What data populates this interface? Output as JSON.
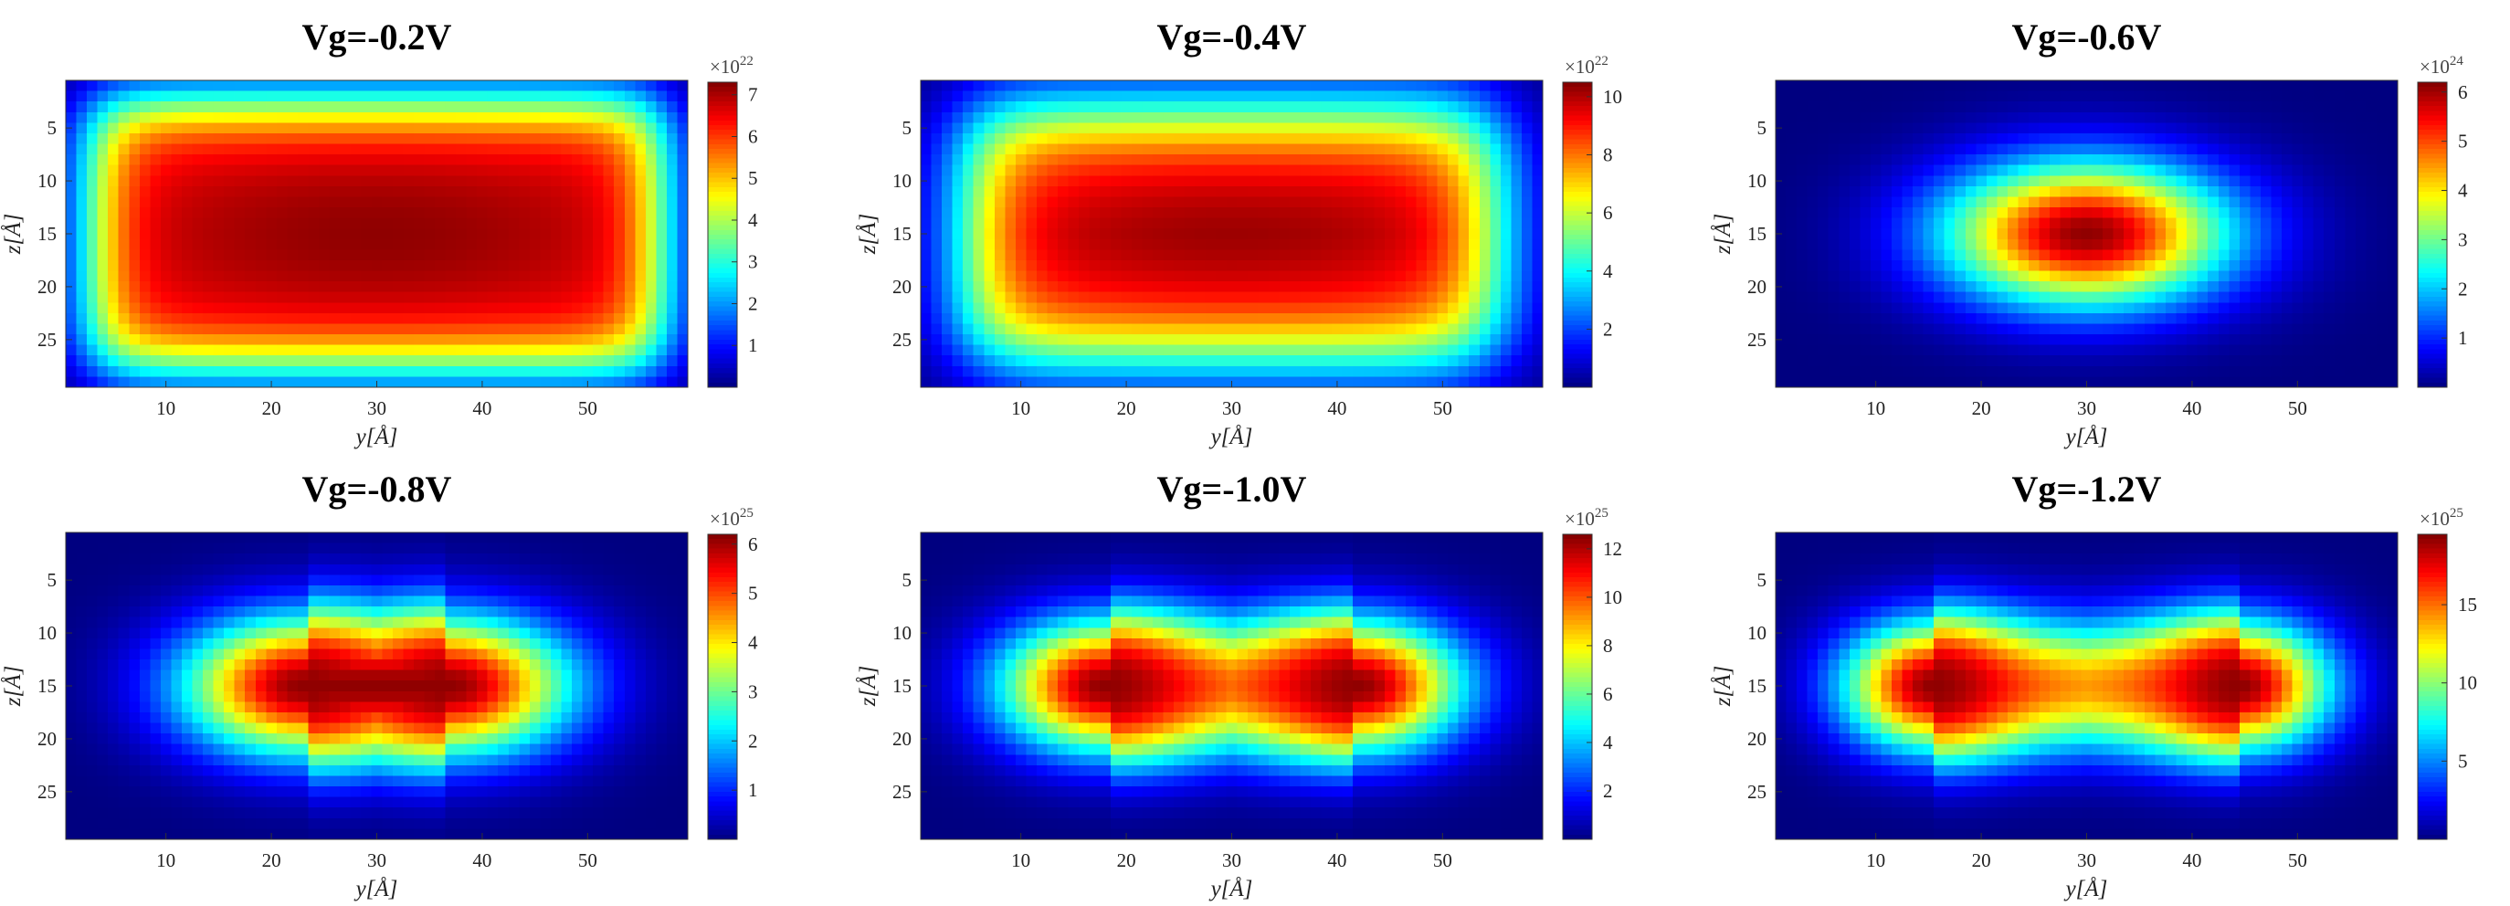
{
  "chart_data": [
    {
      "type": "heatmap",
      "title": "Vg=-0.2V",
      "xlabel": "y[Å]",
      "ylabel": "z[Å]",
      "xlim": [
        0.5,
        59.5
      ],
      "ylim": [
        0.5,
        29.5
      ],
      "y_reversed": true,
      "xticks": [
        10,
        20,
        30,
        40,
        50
      ],
      "yticks": [
        5,
        10,
        15,
        20,
        25
      ],
      "colorbar": {
        "colormap": "jet",
        "range": [
          0,
          7.3
        ],
        "ticks": [
          1,
          2,
          3,
          4,
          5,
          6,
          7
        ],
        "multiplier_base": "×10",
        "multiplier_exp": "22"
      },
      "distribution": {
        "shape": "flat-top slab",
        "peak_value": 7.2,
        "lobes": [
          [
            30,
            15
          ]
        ],
        "half_width_y": 27,
        "half_width_z": 12.5,
        "edge_softness": 3.5
      }
    },
    {
      "type": "heatmap",
      "title": "Vg=-0.4V",
      "xlabel": "y[Å]",
      "ylabel": "z[Å]",
      "xlim": [
        0.5,
        59.5
      ],
      "ylim": [
        0.5,
        29.5
      ],
      "y_reversed": true,
      "xticks": [
        10,
        20,
        30,
        40,
        50
      ],
      "yticks": [
        5,
        10,
        15,
        20,
        25
      ],
      "colorbar": {
        "colormap": "jet",
        "range": [
          0,
          10.5
        ],
        "ticks": [
          2,
          4,
          6,
          8,
          10
        ],
        "multiplier_base": "×10",
        "multiplier_exp": "22"
      },
      "distribution": {
        "shape": "flat-top slab",
        "peak_value": 10.3,
        "lobes": [
          [
            30,
            15
          ]
        ],
        "half_width_y": 25,
        "half_width_z": 11.5,
        "edge_softness": 4.5
      }
    },
    {
      "type": "heatmap",
      "title": "Vg=-0.6V",
      "xlabel": "y[Å]",
      "ylabel": "z[Å]",
      "xlim": [
        0.5,
        59.5
      ],
      "ylim": [
        0.5,
        29.5
      ],
      "y_reversed": true,
      "xticks": [
        10,
        20,
        30,
        40,
        50
      ],
      "yticks": [
        5,
        10,
        15,
        20,
        25
      ],
      "colorbar": {
        "colormap": "jet",
        "range": [
          0,
          6.2
        ],
        "ticks": [
          1,
          2,
          3,
          4,
          5,
          6
        ],
        "multiplier_base": "×10",
        "multiplier_exp": "24"
      },
      "distribution": {
        "shape": "single elliptical peak",
        "peak_value": 6.1,
        "lobes": [
          [
            30,
            15
          ]
        ],
        "sigma_y": 9.5,
        "sigma_z": 4.8
      }
    },
    {
      "type": "heatmap",
      "title": "Vg=-0.8V",
      "xlabel": "y[Å]",
      "ylabel": "z[Å]",
      "xlim": [
        0.5,
        59.5
      ],
      "ylim": [
        0.5,
        29.5
      ],
      "y_reversed": true,
      "xticks": [
        10,
        20,
        30,
        40,
        50
      ],
      "yticks": [
        5,
        10,
        15,
        20,
        25
      ],
      "colorbar": {
        "colormap": "jet",
        "range": [
          0,
          6.2
        ],
        "ticks": [
          1,
          2,
          3,
          4,
          5,
          6
        ],
        "multiplier_base": "×10",
        "multiplier_exp": "25"
      },
      "distribution": {
        "shape": "elongated peak",
        "peak_value": 6.1,
        "lobes": [
          [
            23,
            15
          ],
          [
            37,
            15
          ]
        ],
        "sigma_y": 8,
        "sigma_z": 4.6
      }
    },
    {
      "type": "heatmap",
      "title": "Vg=-1.0V",
      "xlabel": "y[Å]",
      "ylabel": "z[Å]",
      "xlim": [
        0.5,
        59.5
      ],
      "ylim": [
        0.5,
        29.5
      ],
      "y_reversed": true,
      "xticks": [
        10,
        20,
        30,
        40,
        50
      ],
      "yticks": [
        5,
        10,
        15,
        20,
        25
      ],
      "colorbar": {
        "colormap": "jet",
        "range": [
          0,
          12.6
        ],
        "ticks": [
          2,
          4,
          6,
          8,
          10,
          12
        ],
        "multiplier_base": "×10",
        "multiplier_exp": "25"
      },
      "distribution": {
        "shape": "two lobes",
        "peak_value": 12.4,
        "lobes": [
          [
            18,
            15
          ],
          [
            42,
            15
          ]
        ],
        "sigma_y": 7,
        "sigma_z": 4.4
      }
    },
    {
      "type": "heatmap",
      "title": "Vg=-1.2V",
      "xlabel": "y[Å]",
      "ylabel": "z[Å]",
      "xlim": [
        0.5,
        59.5
      ],
      "ylim": [
        0.5,
        29.5
      ],
      "y_reversed": true,
      "xticks": [
        10,
        20,
        30,
        40,
        50
      ],
      "yticks": [
        5,
        10,
        15,
        20,
        25
      ],
      "colorbar": {
        "colormap": "jet",
        "range": [
          0,
          19.5
        ],
        "ticks": [
          5,
          10,
          15
        ],
        "multiplier_base": "×10",
        "multiplier_exp": "25"
      },
      "distribution": {
        "shape": "two lobes",
        "peak_value": 19.2,
        "lobes": [
          [
            15.5,
            15
          ],
          [
            44.5,
            15
          ]
        ],
        "sigma_y": 6,
        "sigma_z": 4.3
      }
    }
  ]
}
